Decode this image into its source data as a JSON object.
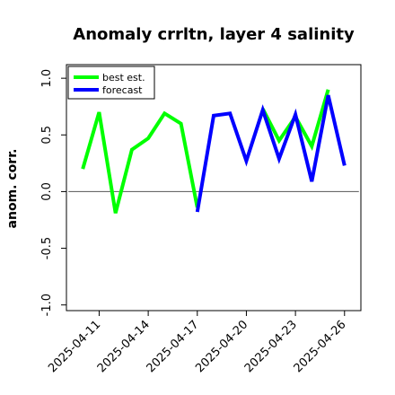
{
  "chart_data": {
    "type": "line",
    "title": "Anomaly crrltn, layer 4 salinity",
    "xlabel": "",
    "ylabel": "anom. corr.",
    "ylim": [
      -1.05,
      1.12
    ],
    "yticks": [
      -1.0,
      -0.5,
      0.0,
      0.5,
      1.0
    ],
    "ytick_labels": [
      "-1.0",
      "-0.5",
      "0.0",
      "0.5",
      "1.0"
    ],
    "xticks": [
      "2025-04-11",
      "2025-04-14",
      "2025-04-17",
      "2025-04-20",
      "2025-04-23",
      "2025-04-26"
    ],
    "highlight_tick": "2025-04-17",
    "highlight_color": "#228b22",
    "x": [
      "2025-04-10",
      "2025-04-11",
      "2025-04-12",
      "2025-04-13",
      "2025-04-14",
      "2025-04-15",
      "2025-04-16",
      "2025-04-17",
      "2025-04-18",
      "2025-04-19",
      "2025-04-20",
      "2025-04-21",
      "2025-04-22",
      "2025-04-23",
      "2025-04-24",
      "2025-04-25",
      "2025-04-26"
    ],
    "xlim": [
      "2025-04-09",
      "2025-04-27"
    ],
    "zero_line": true,
    "grid": false,
    "legend_position": "top-left",
    "series": [
      {
        "name": "best est.",
        "color": "#00ff00",
        "values": [
          0.2,
          0.7,
          -0.19,
          0.37,
          0.47,
          0.69,
          0.6,
          -0.14,
          null,
          null,
          null,
          0.73,
          0.45,
          0.66,
          0.4,
          0.9,
          null
        ]
      },
      {
        "name": "forecast",
        "color": "#0000ff",
        "values": [
          null,
          null,
          null,
          null,
          null,
          null,
          null,
          -0.18,
          0.67,
          0.69,
          0.27,
          0.72,
          0.29,
          0.68,
          0.09,
          0.85,
          0.23
        ]
      }
    ]
  }
}
